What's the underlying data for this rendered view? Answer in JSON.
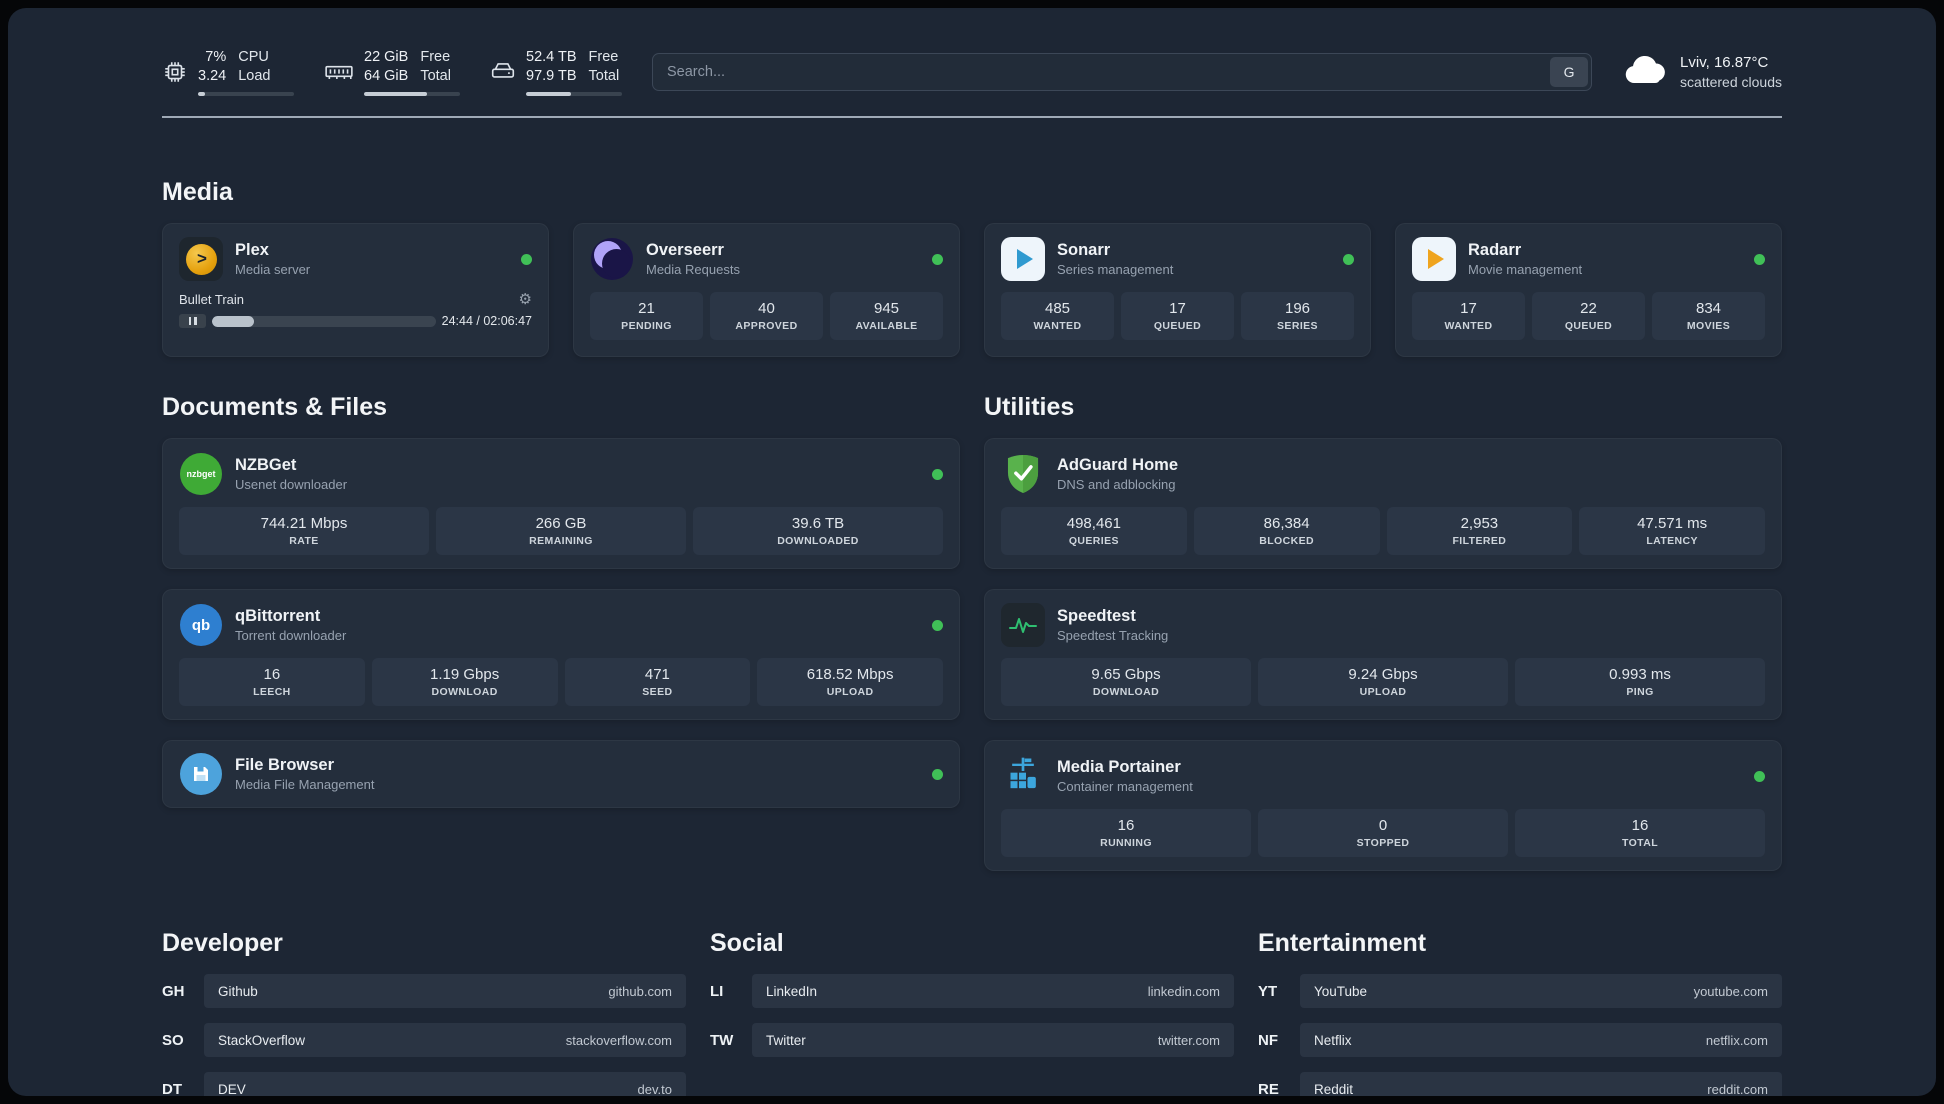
{
  "header": {
    "cpu": {
      "value_primary": "7%",
      "value_secondary": "3.24",
      "label_primary": "CPU",
      "label_secondary": "Load",
      "progress_pct": 7
    },
    "memory": {
      "value_primary": "22 GiB",
      "value_secondary": "64 GiB",
      "label_primary": "Free",
      "label_secondary": "Total",
      "progress_pct": 66
    },
    "storage": {
      "value_primary": "52.4 TB",
      "value_secondary": "97.9 TB",
      "label_primary": "Free",
      "label_secondary": "Total",
      "progress_pct": 47
    },
    "search": {
      "placeholder": "Search...",
      "engine_button": "G"
    },
    "weather": {
      "location_temp": "Lviv, 16.87°C",
      "condition": "scattered clouds"
    }
  },
  "sections": {
    "media": "Media",
    "documents": "Documents & Files",
    "utilities": "Utilities",
    "developer": "Developer",
    "social": "Social",
    "entertainment": "Entertainment"
  },
  "services": {
    "plex": {
      "name": "Plex",
      "description": "Media server",
      "now_playing": {
        "title": "Bullet Train",
        "time": "24:44 / 02:06:47",
        "progress_pct": 19
      }
    },
    "overseerr": {
      "name": "Overseerr",
      "description": "Media Requests",
      "stats": [
        {
          "value": "21",
          "label": "PENDING"
        },
        {
          "value": "40",
          "label": "APPROVED"
        },
        {
          "value": "945",
          "label": "AVAILABLE"
        }
      ]
    },
    "sonarr": {
      "name": "Sonarr",
      "description": "Series management",
      "stats": [
        {
          "value": "485",
          "label": "WANTED"
        },
        {
          "value": "17",
          "label": "QUEUED"
        },
        {
          "value": "196",
          "label": "SERIES"
        }
      ]
    },
    "radarr": {
      "name": "Radarr",
      "description": "Movie management",
      "stats": [
        {
          "value": "17",
          "label": "WANTED"
        },
        {
          "value": "22",
          "label": "QUEUED"
        },
        {
          "value": "834",
          "label": "MOVIES"
        }
      ]
    },
    "nzbget": {
      "name": "NZBGet",
      "description": "Usenet downloader",
      "icon_text": "nzbget",
      "stats": [
        {
          "value": "744.21 Mbps",
          "label": "RATE"
        },
        {
          "value": "266 GB",
          "label": "REMAINING"
        },
        {
          "value": "39.6 TB",
          "label": "DOWNLOADED"
        }
      ]
    },
    "qbittorrent": {
      "name": "qBittorrent",
      "description": "Torrent downloader",
      "icon_text": "qb",
      "stats": [
        {
          "value": "16",
          "label": "LEECH"
        },
        {
          "value": "1.19 Gbps",
          "label": "DOWNLOAD"
        },
        {
          "value": "471",
          "label": "SEED"
        },
        {
          "value": "618.52 Mbps",
          "label": "UPLOAD"
        }
      ]
    },
    "filebrowser": {
      "name": "File Browser",
      "description": "Media File Management"
    },
    "adguard": {
      "name": "AdGuard Home",
      "description": "DNS and adblocking",
      "stats": [
        {
          "value": "498,461",
          "label": "QUERIES"
        },
        {
          "value": "86,384",
          "label": "BLOCKED"
        },
        {
          "value": "2,953",
          "label": "FILTERED"
        },
        {
          "value": "47.571 ms",
          "label": "LATENCY"
        }
      ]
    },
    "speedtest": {
      "name": "Speedtest",
      "description": "Speedtest Tracking",
      "stats": [
        {
          "value": "9.65 Gbps",
          "label": "DOWNLOAD"
        },
        {
          "value": "9.24 Gbps",
          "label": "UPLOAD"
        },
        {
          "value": "0.993 ms",
          "label": "PING"
        }
      ]
    },
    "portainer": {
      "name": "Media Portainer",
      "description": "Container management",
      "stats": [
        {
          "value": "16",
          "label": "RUNNING"
        },
        {
          "value": "0",
          "label": "STOPPED"
        },
        {
          "value": "16",
          "label": "TOTAL"
        }
      ]
    }
  },
  "bookmarks": {
    "developer": [
      {
        "abbr": "GH",
        "name": "Github",
        "url": "github.com"
      },
      {
        "abbr": "SO",
        "name": "StackOverflow",
        "url": "stackoverflow.com"
      },
      {
        "abbr": "DT",
        "name": "DEV",
        "url": "dev.to"
      }
    ],
    "social": [
      {
        "abbr": "LI",
        "name": "LinkedIn",
        "url": "linkedin.com"
      },
      {
        "abbr": "TW",
        "name": "Twitter",
        "url": "twitter.com"
      }
    ],
    "entertainment": [
      {
        "abbr": "YT",
        "name": "YouTube",
        "url": "youtube.com"
      },
      {
        "abbr": "NF",
        "name": "Netflix",
        "url": "netflix.com"
      },
      {
        "abbr": "RE",
        "name": "Reddit",
        "url": "reddit.com"
      }
    ]
  },
  "colors": {
    "status_online": "#40c057",
    "plex_amber": "#e5a00d",
    "adguard_green": "#59b24c",
    "speedtest_green": "#2fbf71",
    "portainer_blue": "#3ca6dd"
  }
}
